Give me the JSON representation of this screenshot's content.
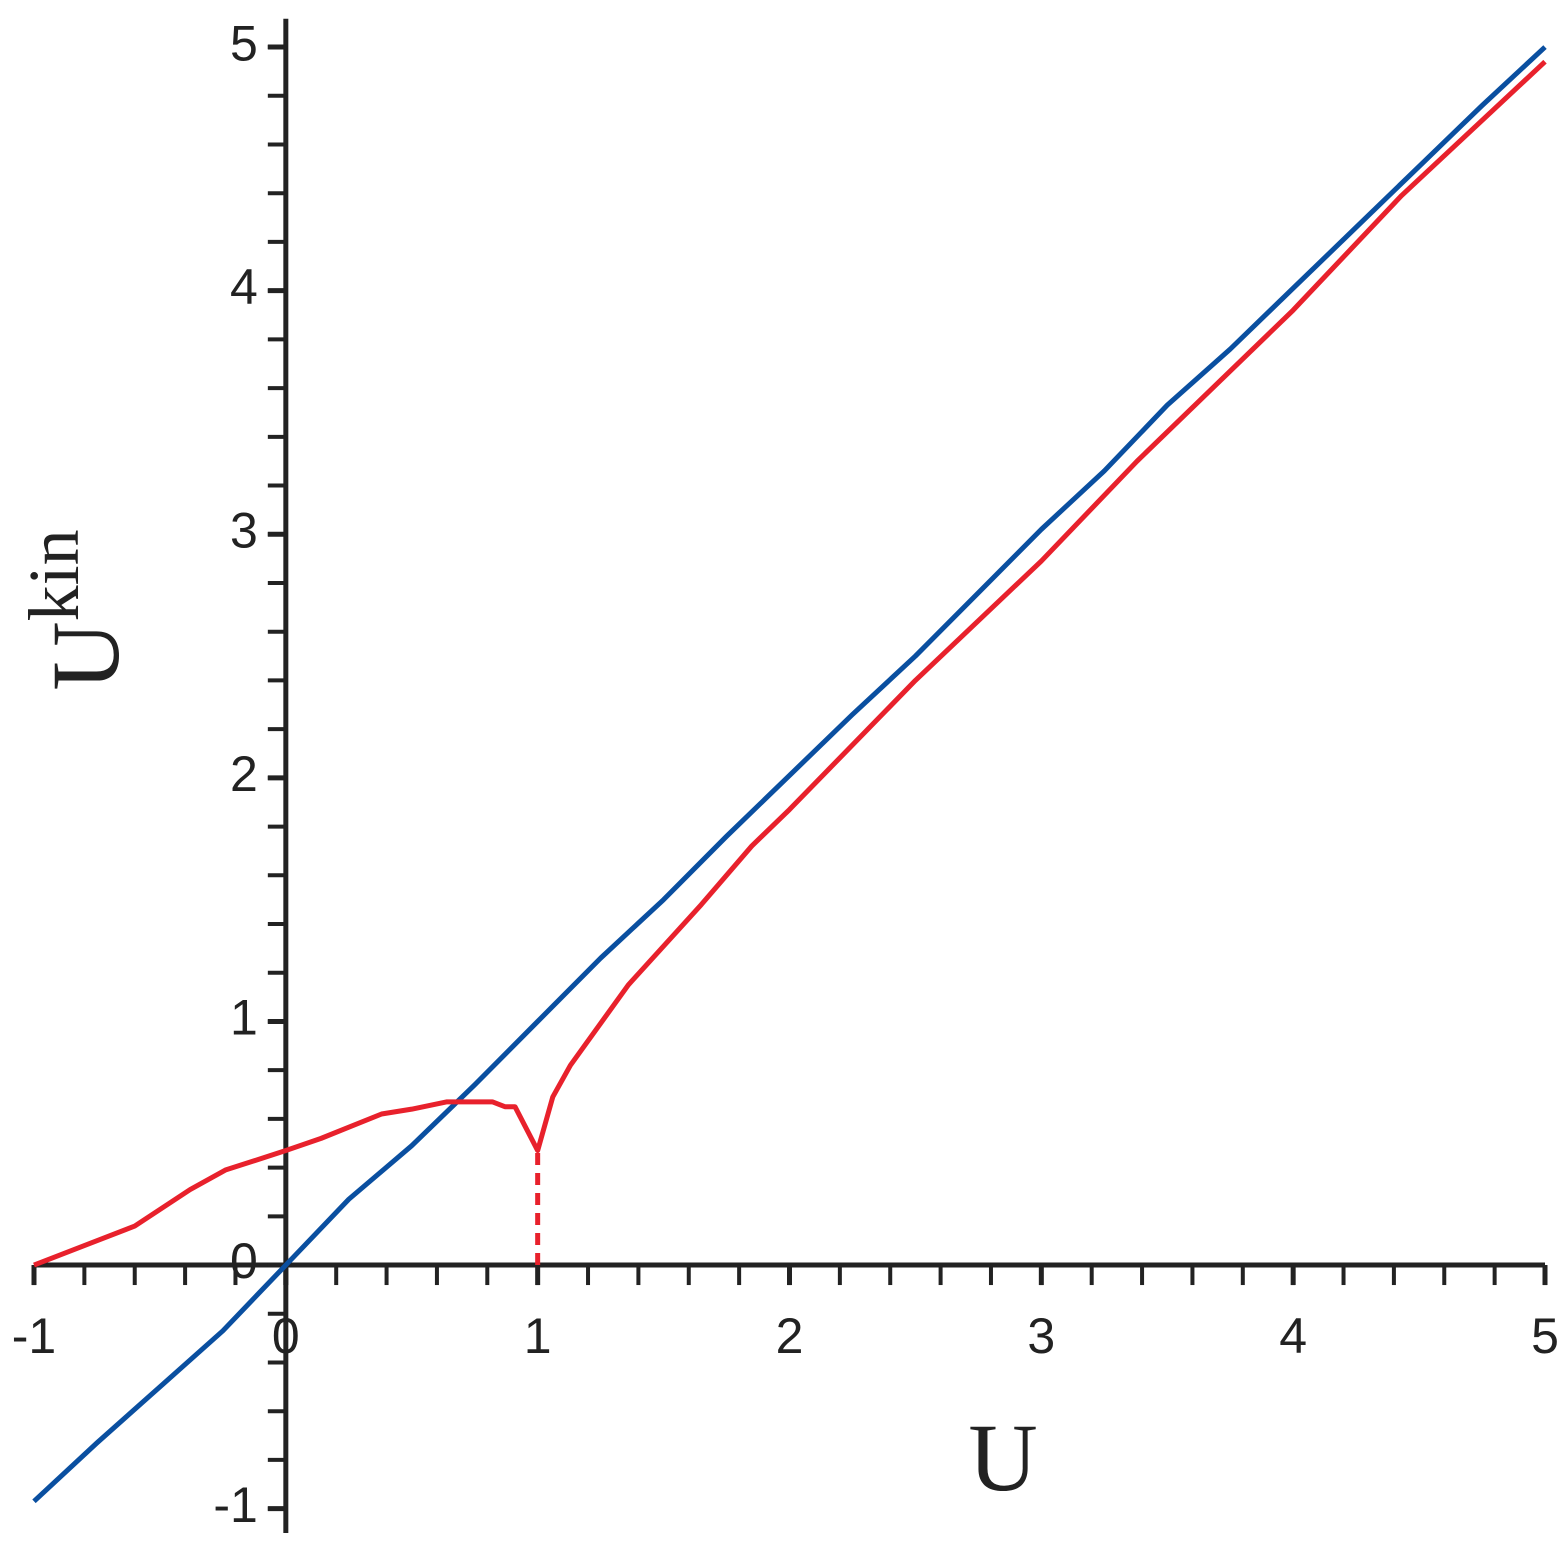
{
  "chart_data": {
    "type": "line",
    "x_label": "U",
    "y_label": "U",
    "y_label_sup": "kin",
    "xlim": [
      -1,
      5
    ],
    "ylim": [
      -1.1,
      5.1
    ],
    "xticks": [
      -1,
      0,
      1,
      2,
      3,
      4,
      5
    ],
    "yticks": [
      -1,
      0,
      1,
      2,
      3,
      4,
      5
    ],
    "minor_tick_step": 0.2,
    "series": [
      {
        "color": "#0a4fa0",
        "dash": false,
        "x": [
          -1,
          -0.75,
          -0.5,
          -0.25,
          0,
          0.25,
          0.5,
          0.75,
          1,
          1.25,
          1.5,
          1.75,
          2,
          2.25,
          2.5,
          2.75,
          3,
          3.25,
          3.5,
          3.75,
          4,
          4.25,
          4.5,
          4.75,
          5
        ],
        "values": [
          -0.97,
          -0.73,
          -0.5,
          -0.27,
          0,
          0.27,
          0.49,
          0.74,
          1,
          1.26,
          1.5,
          1.76,
          2.01,
          2.26,
          2.5,
          2.76,
          3.02,
          3.26,
          3.53,
          3.76,
          4.01,
          4.26,
          4.51,
          4.76,
          5.0
        ]
      },
      {
        "color": "#e8212c",
        "dash": false,
        "x": [
          -1,
          -0.8,
          -0.6,
          -0.38,
          -0.24,
          0,
          0.14,
          0.26,
          0.38,
          0.5,
          0.64,
          0.82,
          0.87,
          0.91,
          0.95,
          1.0,
          1.06,
          1.13,
          1.36,
          1.65,
          1.85,
          2.0,
          2.5,
          3.0,
          3.38,
          4.0,
          4.43,
          5
        ],
        "values": [
          0,
          0.08,
          0.16,
          0.31,
          0.39,
          0.47,
          0.52,
          0.57,
          0.62,
          0.64,
          0.67,
          0.67,
          0.65,
          0.65,
          0.57,
          0.47,
          0.69,
          0.82,
          1.15,
          1.48,
          1.72,
          1.87,
          2.4,
          2.89,
          3.3,
          3.92,
          4.39,
          4.94
        ]
      },
      {
        "color": "#e8212c",
        "dash": true,
        "x": [
          1,
          1
        ],
        "values": [
          0,
          0.47
        ]
      }
    ]
  }
}
